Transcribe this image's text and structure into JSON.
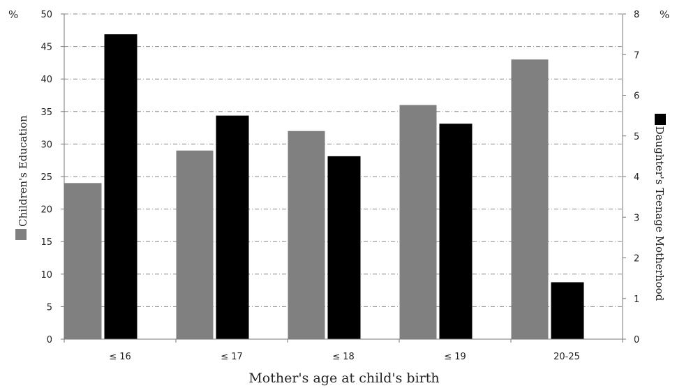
{
  "chart_data": {
    "type": "bar",
    "xlabel": "Mother's age at child's birth",
    "categories": [
      "≤ 16",
      "≤ 17",
      "≤ 18",
      "≤ 19",
      "20-25"
    ],
    "y_left": {
      "unit": "%",
      "ylim": [
        0,
        50
      ],
      "ticks": [
        0,
        5,
        10,
        15,
        20,
        25,
        30,
        35,
        40,
        45,
        50
      ]
    },
    "y_right": {
      "unit": "%",
      "ylim": [
        0,
        8
      ],
      "ticks": [
        0,
        1,
        2,
        3,
        4,
        5,
        6,
        7,
        8
      ]
    },
    "series": [
      {
        "name": "Children's Education",
        "axis": "left",
        "color": "#808080",
        "values": [
          24,
          29,
          32,
          36,
          43
        ]
      },
      {
        "name": "Daughter's Teenage Motherhood",
        "axis": "right",
        "color": "#000000",
        "values": [
          7.5,
          5.5,
          4.5,
          5.3,
          1.4
        ]
      }
    ],
    "grid": true,
    "legend": "rotated labels beside each y-axis"
  }
}
